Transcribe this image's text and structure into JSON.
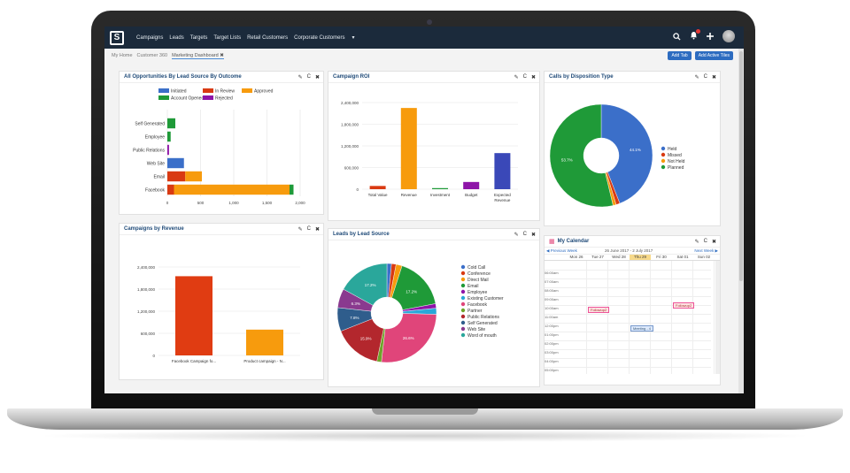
{
  "nav": {
    "items": [
      "Campaigns",
      "Leads",
      "Targets",
      "Target Lists",
      "Retail Customers",
      "Corporate Customers"
    ],
    "caret": "▾",
    "search_icon": "search",
    "bell_icon": "bell",
    "plus_icon": "plus"
  },
  "tabs": {
    "items": [
      "My Home",
      "Customer 360",
      "Marketing Dashboard"
    ],
    "close": "✖"
  },
  "buttons": {
    "add_tab": "Add Tab",
    "add_tiles": "Add Active Tiles"
  },
  "dashlet_icons": {
    "edit": "✎",
    "refresh": "C",
    "close": "✖"
  },
  "d1": {
    "title": "All Opportunities By Lead Source By Outcome"
  },
  "d2": {
    "title": "Campaign ROI"
  },
  "d3": {
    "title": "Calls by Disposition Type"
  },
  "d4": {
    "title": "Campaigns by Revenue"
  },
  "d5": {
    "title": "Leads by Lead Source"
  },
  "d6": {
    "title": "My Calendar",
    "prev": "Previous Week",
    "next": "Next Week",
    "range": "26 June 2017 - 2 July 2017",
    "days": [
      "Mon 26",
      "Tue 27",
      "Wed 28",
      "Thu 29",
      "Fri 30",
      "Sat 01",
      "Sun 02"
    ],
    "times": [
      "06:00am",
      "07:00am",
      "08:00am",
      "09:00am",
      "10:00am",
      "11:00am",
      "12:00pm",
      "01:00pm",
      "02:00pm",
      "03:00pm",
      "04:00pm",
      "05:00pm"
    ],
    "events": [
      {
        "label": "Followup2"
      },
      {
        "label": "Meeting - 4"
      },
      {
        "label": "Followup2"
      }
    ]
  },
  "chart_data": [
    {
      "type": "bar",
      "orientation": "horizontal",
      "stacked": true,
      "categories": [
        "Self Generated",
        "Employee",
        "Public Relations",
        "Web Site",
        "Email",
        "Facebook"
      ],
      "series": [
        {
          "name": "Initiated",
          "color": "#3b6fc9",
          "values": [
            0,
            0,
            0,
            250,
            0,
            0
          ]
        },
        {
          "name": "In Review",
          "color": "#d93a12",
          "values": [
            0,
            0,
            0,
            0,
            270,
            100
          ]
        },
        {
          "name": "Approved",
          "color": "#f79b0d",
          "values": [
            0,
            0,
            0,
            0,
            250,
            1740
          ]
        },
        {
          "name": "Account Opened",
          "color": "#1f9a38",
          "values": [
            120,
            50,
            0,
            0,
            0,
            60
          ]
        },
        {
          "name": "Rejected",
          "color": "#8e14a8",
          "values": [
            0,
            0,
            25,
            0,
            0,
            0
          ]
        }
      ],
      "xlim": [
        0,
        2000
      ],
      "xticks": [
        "0",
        "500",
        "1,000",
        "1,500",
        "2,000"
      ],
      "legend": "top"
    },
    {
      "type": "bar",
      "categories": [
        "Total Value",
        "Revenue",
        "Investment",
        "Budget",
        "Expected Revenue"
      ],
      "values": [
        90000,
        2250000,
        30000,
        200000,
        1000000
      ],
      "colors": [
        "#d93a12",
        "#f79b0d",
        "#1f9a38",
        "#8e14a8",
        "#3a48b8"
      ],
      "ylim": [
        0,
        2400000
      ],
      "yticks": [
        "0",
        "600,000",
        "1,200,000",
        "1,800,000",
        "2,400,000"
      ]
    },
    {
      "type": "pie",
      "donut": true,
      "labels": [
        "Held",
        "Missed",
        "Not Held",
        "Planned"
      ],
      "values": [
        44.1,
        1.2,
        1.0,
        53.7
      ],
      "colors": [
        "#3b6fc9",
        "#d93a12",
        "#f79b0d",
        "#1f9a38"
      ],
      "data_labels": [
        "44.1%",
        "",
        "",
        "53.7%"
      ],
      "legend": "right"
    },
    {
      "type": "bar",
      "categories": [
        "Facebook Campaign fo...",
        "Product campaign - N..."
      ],
      "values": [
        2150000,
        700000
      ],
      "colors": [
        "#e03c12",
        "#f79b0d"
      ],
      "ylim": [
        0,
        2400000
      ],
      "yticks": [
        "0",
        "600,000",
        "1,200,000",
        "1,800,000",
        "2,400,000"
      ]
    },
    {
      "type": "pie",
      "donut": true,
      "labels": [
        "Cold Call",
        "Conference",
        "Direct Mail",
        "Email",
        "Employee",
        "Existing Customer",
        "Facebook",
        "Partner",
        "Public Relations",
        "Self Generated",
        "Web Site",
        "Word of mouth"
      ],
      "values": [
        1.5,
        1.5,
        2.0,
        17.2,
        1.5,
        2.0,
        26.6,
        1.5,
        15.9,
        7.8,
        6.3,
        17.2
      ],
      "colors": [
        "#3b6fc9",
        "#d93a12",
        "#f79b0d",
        "#1f9a38",
        "#8e14a8",
        "#2aa8d8",
        "#e0457a",
        "#6fa42a",
        "#b3272d",
        "#2f5d8c",
        "#8a3a8f",
        "#2aa79b"
      ],
      "data_labels": [
        "",
        "",
        "",
        "17.2%",
        "",
        "",
        "26.6%",
        "",
        "15.9%",
        "7.8%",
        "6.3%",
        "17.2%"
      ],
      "legend": "right"
    }
  ]
}
